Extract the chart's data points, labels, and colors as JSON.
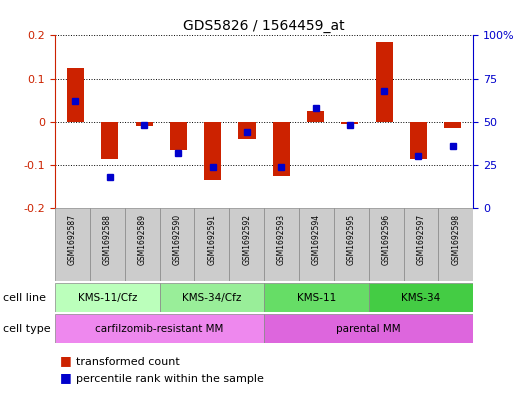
{
  "title": "GDS5826 / 1564459_at",
  "samples": [
    "GSM1692587",
    "GSM1692588",
    "GSM1692589",
    "GSM1692590",
    "GSM1692591",
    "GSM1692592",
    "GSM1692593",
    "GSM1692594",
    "GSM1692595",
    "GSM1692596",
    "GSM1692597",
    "GSM1692598"
  ],
  "transformed_count": [
    0.125,
    -0.085,
    -0.01,
    -0.065,
    -0.135,
    -0.04,
    -0.125,
    0.025,
    -0.005,
    0.185,
    -0.085,
    -0.015
  ],
  "percentile_rank_raw": [
    62,
    18,
    48,
    32,
    24,
    44,
    24,
    58,
    48,
    68,
    30,
    36
  ],
  "ylim": [
    -0.2,
    0.2
  ],
  "y2lim": [
    0,
    100
  ],
  "yticks": [
    -0.2,
    -0.1,
    0.0,
    0.1,
    0.2
  ],
  "ytick_labels": [
    "-0.2",
    "-0.1",
    "0",
    "0.1",
    "0.2"
  ],
  "y2ticks": [
    0,
    25,
    50,
    75,
    100
  ],
  "y2tick_labels": [
    "0",
    "25",
    "50",
    "75",
    "100%"
  ],
  "bar_color": "#cc2200",
  "dot_color": "#0000cc",
  "zero_line_color": "#cc0000",
  "grid_color": "#000000",
  "cell_lines": [
    {
      "label": "KMS-11/Cfz",
      "start": 0,
      "end": 3,
      "color": "#bbffbb"
    },
    {
      "label": "KMS-34/Cfz",
      "start": 3,
      "end": 6,
      "color": "#99ee99"
    },
    {
      "label": "KMS-11",
      "start": 6,
      "end": 9,
      "color": "#66dd66"
    },
    {
      "label": "KMS-34",
      "start": 9,
      "end": 12,
      "color": "#44cc44"
    }
  ],
  "cell_types": [
    {
      "label": "carfilzomib-resistant MM",
      "start": 0,
      "end": 6,
      "color": "#ee88ee"
    },
    {
      "label": "parental MM",
      "start": 6,
      "end": 12,
      "color": "#dd66dd"
    }
  ],
  "legend_items": [
    {
      "label": "transformed count",
      "color": "#cc2200"
    },
    {
      "label": "percentile rank within the sample",
      "color": "#0000cc"
    }
  ],
  "sample_box_color": "#cccccc",
  "sample_box_edge": "#888888"
}
